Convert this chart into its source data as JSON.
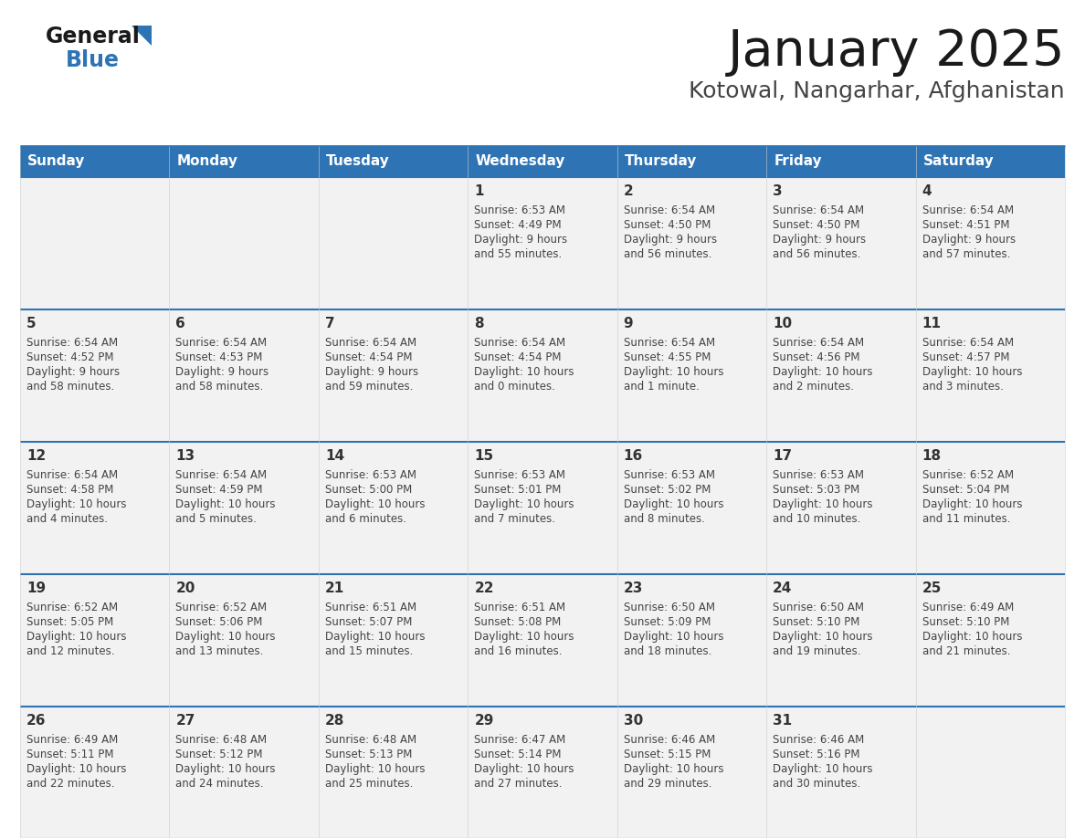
{
  "title": "January 2025",
  "subtitle": "Kotowal, Nangarhar, Afghanistan",
  "days_of_week": [
    "Sunday",
    "Monday",
    "Tuesday",
    "Wednesday",
    "Thursday",
    "Friday",
    "Saturday"
  ],
  "header_bg": "#2E74B5",
  "header_text": "#FFFFFF",
  "cell_bg": "#F2F2F2",
  "separator_color": "#2E74B5",
  "day_number_color": "#333333",
  "cell_text_color": "#444444",
  "title_color": "#1A1A1A",
  "subtitle_color": "#444444",
  "calendar_data": [
    [
      {
        "day": null,
        "sunrise": null,
        "sunset": null,
        "daylight": null
      },
      {
        "day": null,
        "sunrise": null,
        "sunset": null,
        "daylight": null
      },
      {
        "day": null,
        "sunrise": null,
        "sunset": null,
        "daylight": null
      },
      {
        "day": 1,
        "sunrise": "6:53 AM",
        "sunset": "4:49 PM",
        "daylight": "9 hours\nand 55 minutes."
      },
      {
        "day": 2,
        "sunrise": "6:54 AM",
        "sunset": "4:50 PM",
        "daylight": "9 hours\nand 56 minutes."
      },
      {
        "day": 3,
        "sunrise": "6:54 AM",
        "sunset": "4:50 PM",
        "daylight": "9 hours\nand 56 minutes."
      },
      {
        "day": 4,
        "sunrise": "6:54 AM",
        "sunset": "4:51 PM",
        "daylight": "9 hours\nand 57 minutes."
      }
    ],
    [
      {
        "day": 5,
        "sunrise": "6:54 AM",
        "sunset": "4:52 PM",
        "daylight": "9 hours\nand 58 minutes."
      },
      {
        "day": 6,
        "sunrise": "6:54 AM",
        "sunset": "4:53 PM",
        "daylight": "9 hours\nand 58 minutes."
      },
      {
        "day": 7,
        "sunrise": "6:54 AM",
        "sunset": "4:54 PM",
        "daylight": "9 hours\nand 59 minutes."
      },
      {
        "day": 8,
        "sunrise": "6:54 AM",
        "sunset": "4:54 PM",
        "daylight": "10 hours\nand 0 minutes."
      },
      {
        "day": 9,
        "sunrise": "6:54 AM",
        "sunset": "4:55 PM",
        "daylight": "10 hours\nand 1 minute."
      },
      {
        "day": 10,
        "sunrise": "6:54 AM",
        "sunset": "4:56 PM",
        "daylight": "10 hours\nand 2 minutes."
      },
      {
        "day": 11,
        "sunrise": "6:54 AM",
        "sunset": "4:57 PM",
        "daylight": "10 hours\nand 3 minutes."
      }
    ],
    [
      {
        "day": 12,
        "sunrise": "6:54 AM",
        "sunset": "4:58 PM",
        "daylight": "10 hours\nand 4 minutes."
      },
      {
        "day": 13,
        "sunrise": "6:54 AM",
        "sunset": "4:59 PM",
        "daylight": "10 hours\nand 5 minutes."
      },
      {
        "day": 14,
        "sunrise": "6:53 AM",
        "sunset": "5:00 PM",
        "daylight": "10 hours\nand 6 minutes."
      },
      {
        "day": 15,
        "sunrise": "6:53 AM",
        "sunset": "5:01 PM",
        "daylight": "10 hours\nand 7 minutes."
      },
      {
        "day": 16,
        "sunrise": "6:53 AM",
        "sunset": "5:02 PM",
        "daylight": "10 hours\nand 8 minutes."
      },
      {
        "day": 17,
        "sunrise": "6:53 AM",
        "sunset": "5:03 PM",
        "daylight": "10 hours\nand 10 minutes."
      },
      {
        "day": 18,
        "sunrise": "6:52 AM",
        "sunset": "5:04 PM",
        "daylight": "10 hours\nand 11 minutes."
      }
    ],
    [
      {
        "day": 19,
        "sunrise": "6:52 AM",
        "sunset": "5:05 PM",
        "daylight": "10 hours\nand 12 minutes."
      },
      {
        "day": 20,
        "sunrise": "6:52 AM",
        "sunset": "5:06 PM",
        "daylight": "10 hours\nand 13 minutes."
      },
      {
        "day": 21,
        "sunrise": "6:51 AM",
        "sunset": "5:07 PM",
        "daylight": "10 hours\nand 15 minutes."
      },
      {
        "day": 22,
        "sunrise": "6:51 AM",
        "sunset": "5:08 PM",
        "daylight": "10 hours\nand 16 minutes."
      },
      {
        "day": 23,
        "sunrise": "6:50 AM",
        "sunset": "5:09 PM",
        "daylight": "10 hours\nand 18 minutes."
      },
      {
        "day": 24,
        "sunrise": "6:50 AM",
        "sunset": "5:10 PM",
        "daylight": "10 hours\nand 19 minutes."
      },
      {
        "day": 25,
        "sunrise": "6:49 AM",
        "sunset": "5:10 PM",
        "daylight": "10 hours\nand 21 minutes."
      }
    ],
    [
      {
        "day": 26,
        "sunrise": "6:49 AM",
        "sunset": "5:11 PM",
        "daylight": "10 hours\nand 22 minutes."
      },
      {
        "day": 27,
        "sunrise": "6:48 AM",
        "sunset": "5:12 PM",
        "daylight": "10 hours\nand 24 minutes."
      },
      {
        "day": 28,
        "sunrise": "6:48 AM",
        "sunset": "5:13 PM",
        "daylight": "10 hours\nand 25 minutes."
      },
      {
        "day": 29,
        "sunrise": "6:47 AM",
        "sunset": "5:14 PM",
        "daylight": "10 hours\nand 27 minutes."
      },
      {
        "day": 30,
        "sunrise": "6:46 AM",
        "sunset": "5:15 PM",
        "daylight": "10 hours\nand 29 minutes."
      },
      {
        "day": 31,
        "sunrise": "6:46 AM",
        "sunset": "5:16 PM",
        "daylight": "10 hours\nand 30 minutes."
      },
      {
        "day": null,
        "sunrise": null,
        "sunset": null,
        "daylight": null
      }
    ]
  ],
  "logo_general_color": "#1A1A1A",
  "logo_blue_color": "#2E74B5",
  "triangle_color": "#2E74B5"
}
